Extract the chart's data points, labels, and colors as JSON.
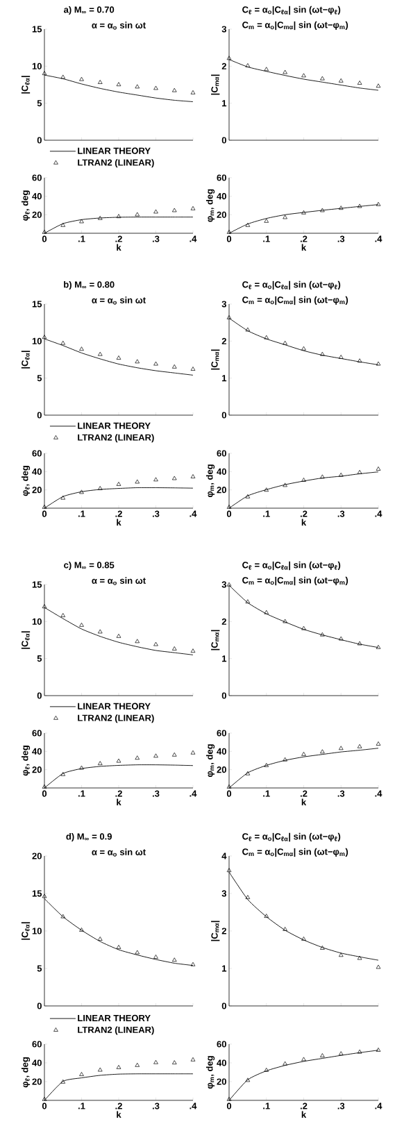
{
  "chart_data": [
    {
      "type": "line",
      "title": "a)  M$_{∞}$ = 0.70",
      "annotations": [
        "α = α$_{o}$ sin ωt"
      ],
      "ylabel": "|C$_{ℓα}$|",
      "xlim": [
        0,
        0.4
      ],
      "xticks": [
        0,
        0.1,
        0.2,
        0.3,
        0.4
      ],
      "ylim": [
        0,
        15
      ],
      "yticks": [
        0,
        5,
        10,
        15
      ],
      "tick_labels": "y",
      "legend": "bottom",
      "series": [
        {
          "name": "LINEAR THEORY",
          "color": "#000000",
          "x": [
            0,
            0.05,
            0.1,
            0.15,
            0.2,
            0.25,
            0.3,
            0.35,
            0.4
          ],
          "values": [
            8.8,
            8.3,
            7.6,
            7.0,
            6.5,
            6.1,
            5.7,
            5.4,
            5.2
          ]
        },
        {
          "name": "LTRAN2 (LINEAR)",
          "type": "scatter",
          "marker": "triangle",
          "color": "#000000",
          "x": [
            0,
            0.05,
            0.1,
            0.15,
            0.2,
            0.25,
            0.3,
            0.35,
            0.4
          ],
          "values": [
            9.0,
            8.5,
            8.2,
            7.8,
            7.5,
            7.2,
            7.0,
            6.7,
            6.4
          ]
        }
      ]
    },
    {
      "type": "line",
      "annotations": [
        "C$_{ℓ}$ = α$_{o}$|C$_{ℓα}$| sin (ωt−φ$_{ℓ}$)",
        "C$_{m}$ = α$_{o}$|C$_{mα}$| sin (ωt−φ$_{m}$)"
      ],
      "ylabel": "|C$_{mα}$|",
      "xlim": [
        0,
        0.4
      ],
      "xticks": [
        0,
        0.1,
        0.2,
        0.3,
        0.4
      ],
      "ylim": [
        0,
        3
      ],
      "yticks": [
        0,
        1,
        2,
        3
      ],
      "tick_labels": "y",
      "series": [
        {
          "color": "#000000",
          "x": [
            0,
            0.05,
            0.1,
            0.15,
            0.2,
            0.25,
            0.3,
            0.35,
            0.4
          ],
          "values": [
            2.18,
            1.98,
            1.86,
            1.75,
            1.65,
            1.57,
            1.49,
            1.41,
            1.35
          ]
        },
        {
          "type": "scatter",
          "marker": "triangle",
          "color": "#000000",
          "x": [
            0,
            0.05,
            0.1,
            0.15,
            0.2,
            0.25,
            0.3,
            0.35,
            0.4
          ],
          "values": [
            2.21,
            2.01,
            1.91,
            1.83,
            1.74,
            1.66,
            1.6,
            1.54,
            1.46
          ]
        }
      ]
    },
    {
      "type": "line",
      "xlabel": "k",
      "ylabel": "φ$_{ℓ}$, deg",
      "xlim": [
        0,
        0.4
      ],
      "xticks": [
        0,
        {
          "value": 0.1,
          "label": ".1"
        },
        {
          "value": 0.2,
          "label": ".2"
        },
        {
          "value": 0.3,
          "label": ".3"
        },
        {
          "value": 0.4,
          "label": ".4"
        }
      ],
      "ylim": [
        0,
        60
      ],
      "yticks": [
        20,
        40,
        60
      ],
      "series": [
        {
          "color": "#000000",
          "x": [
            0,
            0.05,
            0.1,
            0.15,
            0.2,
            0.25,
            0.3,
            0.35,
            0.4
          ],
          "values": [
            0,
            10.4,
            14.7,
            16.5,
            17.3,
            17.5,
            17.5,
            17.5,
            17.5
          ]
        },
        {
          "type": "scatter",
          "marker": "triangle",
          "color": "#000000",
          "x": [
            0,
            0.05,
            0.1,
            0.15,
            0.2,
            0.25,
            0.3,
            0.35,
            0.4
          ],
          "values": [
            1,
            8.5,
            12.5,
            16,
            18,
            20,
            23,
            24.5,
            26.5
          ]
        }
      ]
    },
    {
      "type": "line",
      "xlabel": "k",
      "ylabel": "φ$_{m}$, deg",
      "xlim": [
        0,
        0.4
      ],
      "xticks": [
        0,
        {
          "value": 0.1,
          "label": ".1"
        },
        {
          "value": 0.2,
          "label": ".2"
        },
        {
          "value": 0.3,
          "label": ".3"
        },
        {
          "value": 0.4,
          "label": ".4"
        }
      ],
      "ylim": [
        0,
        60
      ],
      "yticks": [
        20,
        40,
        60
      ],
      "series": [
        {
          "color": "#000000",
          "x": [
            0,
            0.05,
            0.1,
            0.15,
            0.2,
            0.25,
            0.3,
            0.35,
            0.4
          ],
          "values": [
            0,
            10,
            16,
            20,
            22.5,
            24.8,
            26.9,
            29,
            31
          ]
        },
        {
          "type": "scatter",
          "marker": "triangle",
          "color": "#000000",
          "x": [
            0,
            0.05,
            0.1,
            0.15,
            0.2,
            0.25,
            0.3,
            0.35,
            0.4
          ],
          "values": [
            1,
            8.5,
            13,
            17,
            22,
            24.5,
            27,
            29,
            31
          ]
        }
      ]
    },
    {
      "type": "line",
      "title": "b)  M$_{∞}$ = 0.80",
      "annotations": [
        "α = α$_{o}$ sin ωt"
      ],
      "ylabel": "|C$_{ℓα}$|",
      "xlim": [
        0,
        0.4
      ],
      "xticks": [
        0,
        0.1,
        0.2,
        0.3,
        0.4
      ],
      "ylim": [
        0,
        15
      ],
      "yticks": [
        0,
        5,
        10,
        15
      ],
      "tick_labels": "y",
      "legend": "bottom",
      "series": [
        {
          "name": "LINEAR THEORY",
          "color": "#000000",
          "x": [
            0,
            0.05,
            0.1,
            0.15,
            0.2,
            0.25,
            0.3,
            0.35,
            0.4
          ],
          "values": [
            10.3,
            9.4,
            8.4,
            7.6,
            6.9,
            6.4,
            6.0,
            5.7,
            5.4
          ]
        },
        {
          "name": "LTRAN2 (LINEAR)",
          "type": "scatter",
          "marker": "triangle",
          "color": "#000000",
          "x": [
            0,
            0.05,
            0.1,
            0.15,
            0.2,
            0.25,
            0.3,
            0.35,
            0.4
          ],
          "values": [
            10.5,
            9.7,
            8.9,
            8.2,
            7.7,
            7.2,
            6.9,
            6.5,
            6.2
          ]
        }
      ]
    },
    {
      "type": "line",
      "annotations": [
        "C$_{ℓ}$ = α$_{o}$|C$_{ℓα}$| sin (ωt−φ$_{ℓ}$)",
        "C$_{m}$ = α$_{o}$|C$_{mα}$| sin (ωt−φ$_{m}$)"
      ],
      "ylabel": "|C$_{mα}$|",
      "xlim": [
        0,
        0.4
      ],
      "xticks": [
        0,
        0.1,
        0.2,
        0.3,
        0.4
      ],
      "ylim": [
        0,
        3
      ],
      "yticks": [
        0,
        1,
        2,
        3
      ],
      "tick_labels": "y",
      "series": [
        {
          "color": "#000000",
          "x": [
            0,
            0.05,
            0.1,
            0.15,
            0.2,
            0.25,
            0.3,
            0.35,
            0.4
          ],
          "values": [
            2.62,
            2.28,
            2.06,
            1.9,
            1.74,
            1.62,
            1.53,
            1.44,
            1.36
          ]
        },
        {
          "type": "scatter",
          "marker": "triangle",
          "color": "#000000",
          "x": [
            0,
            0.05,
            0.1,
            0.15,
            0.2,
            0.25,
            0.3,
            0.35,
            0.4
          ],
          "values": [
            2.63,
            2.3,
            2.09,
            1.94,
            1.79,
            1.64,
            1.56,
            1.46,
            1.38
          ]
        }
      ]
    },
    {
      "type": "line",
      "xlabel": "k",
      "ylabel": "φ$_{ℓ}$, deg",
      "xlim": [
        0,
        0.4
      ],
      "xticks": [
        0,
        {
          "value": 0.1,
          "label": ".1"
        },
        {
          "value": 0.2,
          "label": ".2"
        },
        {
          "value": 0.3,
          "label": ".3"
        },
        {
          "value": 0.4,
          "label": ".4"
        }
      ],
      "ylim": [
        0,
        60
      ],
      "yticks": [
        20,
        40,
        60
      ],
      "series": [
        {
          "color": "#000000",
          "x": [
            0,
            0.05,
            0.1,
            0.15,
            0.2,
            0.25,
            0.3,
            0.35,
            0.4
          ],
          "values": [
            0,
            12.7,
            18,
            20.5,
            21.6,
            22.4,
            22.4,
            22.2,
            21.9
          ]
        },
        {
          "type": "scatter",
          "marker": "triangle",
          "color": "#000000",
          "x": [
            0,
            0.05,
            0.1,
            0.15,
            0.2,
            0.25,
            0.3,
            0.35,
            0.4
          ],
          "values": [
            1,
            11,
            17.3,
            21.4,
            26,
            28.6,
            31,
            32.4,
            34.3
          ]
        }
      ]
    },
    {
      "type": "line",
      "xlabel": "k",
      "ylabel": "φ$_{m}$, deg",
      "xlim": [
        0,
        0.4
      ],
      "xticks": [
        0,
        {
          "value": 0.1,
          "label": ".1"
        },
        {
          "value": 0.2,
          "label": ".2"
        },
        {
          "value": 0.3,
          "label": ".3"
        },
        {
          "value": 0.4,
          "label": ".4"
        }
      ],
      "ylim": [
        0,
        60
      ],
      "yticks": [
        20,
        40,
        60
      ],
      "series": [
        {
          "color": "#000000",
          "x": [
            0,
            0.05,
            0.1,
            0.15,
            0.2,
            0.25,
            0.3,
            0.35,
            0.4
          ],
          "values": [
            0,
            13.5,
            20.3,
            25.7,
            29.7,
            33,
            35,
            37.6,
            39.7
          ]
        },
        {
          "type": "scatter",
          "marker": "triangle",
          "color": "#000000",
          "x": [
            0,
            0.05,
            0.1,
            0.15,
            0.2,
            0.25,
            0.3,
            0.35,
            0.4
          ],
          "values": [
            1,
            12.4,
            19.7,
            24.9,
            30.5,
            34,
            36,
            39,
            42.7
          ]
        }
      ]
    },
    {
      "type": "line",
      "title": "c)  M$_{∞}$ = 0.85",
      "annotations": [
        "α = α$_{o}$ sin ωt"
      ],
      "ylabel": "|C$_{ℓα}$|",
      "xlim": [
        0,
        0.4
      ],
      "xticks": [
        0,
        0.1,
        0.2,
        0.3,
        0.4
      ],
      "ylim": [
        0,
        15
      ],
      "yticks": [
        0,
        5,
        10,
        15
      ],
      "tick_labels": "y",
      "legend": "bottom",
      "series": [
        {
          "name": "LINEAR THEORY",
          "color": "#000000",
          "x": [
            0,
            0.05,
            0.1,
            0.15,
            0.2,
            0.25,
            0.3,
            0.35,
            0.4
          ],
          "values": [
            11.9,
            10.4,
            9.0,
            8.0,
            7.2,
            6.6,
            6.1,
            5.8,
            5.5
          ]
        },
        {
          "name": "LTRAN2 (LINEAR)",
          "type": "scatter",
          "marker": "triangle",
          "color": "#000000",
          "x": [
            0,
            0.05,
            0.1,
            0.15,
            0.2,
            0.25,
            0.3,
            0.35,
            0.4
          ],
          "values": [
            12.0,
            10.8,
            9.5,
            8.6,
            8.0,
            7.3,
            6.9,
            6.3,
            6.0
          ]
        }
      ]
    },
    {
      "type": "line",
      "annotations": [
        "C$_{ℓ}$ = α$_{o}$|C$_{ℓα}$| sin (ωt−φ$_{ℓ}$)",
        "C$_{m}$ = α$_{o}$|C$_{mα}$| sin (ωt−φ$_{m}$)"
      ],
      "ylabel": "|C$_{mα}$|",
      "xlim": [
        0,
        0.4
      ],
      "xticks": [
        0,
        0.1,
        0.2,
        0.3,
        0.4
      ],
      "ylim": [
        0,
        3
      ],
      "yticks": [
        0,
        1,
        2,
        3
      ],
      "tick_labels": "y",
      "series": [
        {
          "color": "#000000",
          "x": [
            0,
            0.05,
            0.1,
            0.15,
            0.2,
            0.25,
            0.3,
            0.35,
            0.4
          ],
          "values": [
            2.98,
            2.51,
            2.21,
            1.99,
            1.79,
            1.64,
            1.51,
            1.39,
            1.3
          ]
        },
        {
          "type": "scatter",
          "marker": "triangle",
          "color": "#000000",
          "x": [
            0,
            0.05,
            0.1,
            0.15,
            0.2,
            0.25,
            0.3,
            0.35,
            0.4
          ],
          "values": [
            2.99,
            2.53,
            2.24,
            2.0,
            1.81,
            1.64,
            1.53,
            1.4,
            1.3
          ]
        }
      ]
    },
    {
      "type": "line",
      "xlabel": "k",
      "ylabel": "φ$_{ℓ}$, deg",
      "xlim": [
        0,
        0.4
      ],
      "xticks": [
        0,
        {
          "value": 0.1,
          "label": ".1"
        },
        {
          "value": 0.2,
          "label": ".2"
        },
        {
          "value": 0.3,
          "label": ".3"
        },
        {
          "value": 0.4,
          "label": ".4"
        }
      ],
      "ylim": [
        0,
        60
      ],
      "yticks": [
        20,
        40,
        60
      ],
      "series": [
        {
          "color": "#000000",
          "x": [
            0,
            0.05,
            0.1,
            0.15,
            0.2,
            0.25,
            0.3,
            0.35,
            0.4
          ],
          "values": [
            0,
            15.8,
            21.2,
            23.6,
            24.7,
            25.3,
            25.3,
            25,
            24.5
          ]
        },
        {
          "type": "scatter",
          "marker": "triangle",
          "color": "#000000",
          "x": [
            0,
            0.05,
            0.1,
            0.15,
            0.2,
            0.25,
            0.3,
            0.35,
            0.4
          ],
          "values": [
            1,
            14.7,
            21.7,
            26.6,
            29.3,
            32.6,
            34.8,
            36,
            38.3
          ]
        }
      ]
    },
    {
      "type": "line",
      "xlabel": "k",
      "ylabel": "φ$_{m}$, deg",
      "xlim": [
        0,
        0.4
      ],
      "xticks": [
        0,
        {
          "value": 0.1,
          "label": ".1"
        },
        {
          "value": 0.2,
          "label": ".2"
        },
        {
          "value": 0.3,
          "label": ".3"
        },
        {
          "value": 0.4,
          "label": ".4"
        }
      ],
      "ylim": [
        0,
        60
      ],
      "yticks": [
        20,
        40,
        60
      ],
      "series": [
        {
          "color": "#000000",
          "x": [
            0,
            0.05,
            0.1,
            0.15,
            0.2,
            0.25,
            0.3,
            0.35,
            0.4
          ],
          "values": [
            0,
            16.6,
            24.7,
            30.2,
            34,
            36.7,
            39.4,
            41.3,
            43.5
          ]
        },
        {
          "type": "scatter",
          "marker": "triangle",
          "color": "#000000",
          "x": [
            0,
            0.05,
            0.1,
            0.15,
            0.2,
            0.25,
            0.3,
            0.35,
            0.4
          ],
          "values": [
            1,
            15.5,
            24.5,
            30.7,
            36.7,
            39.4,
            43.2,
            45.1,
            48
          ]
        }
      ]
    },
    {
      "type": "line",
      "title": "d)  M$_{∞}$ = 0.9",
      "annotations": [
        "α = α$_{o}$ sin ωt"
      ],
      "ylabel": "|C$_{ℓα}$|",
      "xlim": [
        0,
        0.4
      ],
      "xticks": [
        0,
        0.1,
        0.2,
        0.3,
        0.4
      ],
      "ylim": [
        0,
        20
      ],
      "yticks": [
        0,
        5,
        10,
        15,
        20
      ],
      "tick_labels": "y",
      "legend": "bottom",
      "series": [
        {
          "name": "LINEAR THEORY",
          "color": "#000000",
          "x": [
            0,
            0.05,
            0.1,
            0.15,
            0.2,
            0.25,
            0.3,
            0.35,
            0.4
          ],
          "values": [
            14.3,
            11.9,
            10.1,
            8.6,
            7.5,
            6.8,
            6.2,
            5.7,
            5.4
          ]
        },
        {
          "name": "LTRAN2 (LINEAR)",
          "type": "scatter",
          "marker": "triangle",
          "color": "#000000",
          "x": [
            0,
            0.05,
            0.1,
            0.15,
            0.2,
            0.25,
            0.3,
            0.35,
            0.4
          ],
          "values": [
            14.6,
            11.9,
            10.1,
            8.9,
            7.8,
            7.1,
            6.5,
            6.1,
            5.5
          ]
        }
      ]
    },
    {
      "type": "line",
      "annotations": [
        "C$_{ℓ}$ = α$_{o}$|C$_{ℓα}$| sin (ωt−φ$_{ℓ}$)",
        "C$_{m}$ = α$_{o}$|C$_{mα}$| sin (ωt−φ$_{m}$)"
      ],
      "ylabel": "|C$_{mα}$|",
      "xlim": [
        0,
        0.4
      ],
      "xticks": [
        0,
        0.1,
        0.2,
        0.3,
        0.4
      ],
      "ylim": [
        0,
        4
      ],
      "yticks": [
        0,
        1,
        2,
        3,
        4
      ],
      "tick_labels": "y",
      "series": [
        {
          "color": "#000000",
          "x": [
            0,
            0.05,
            0.1,
            0.15,
            0.2,
            0.25,
            0.3,
            0.35,
            0.4
          ],
          "values": [
            3.57,
            2.84,
            2.38,
            2.02,
            1.76,
            1.56,
            1.41,
            1.31,
            1.22
          ]
        },
        {
          "type": "scatter",
          "marker": "triangle",
          "color": "#000000",
          "x": [
            0,
            0.05,
            0.1,
            0.15,
            0.2,
            0.25,
            0.3,
            0.35,
            0.4
          ],
          "values": [
            3.61,
            2.89,
            2.39,
            2.04,
            1.78,
            1.54,
            1.35,
            1.27,
            1.03
          ]
        }
      ]
    },
    {
      "type": "line",
      "xlabel": "k",
      "ylabel": "φ$_{ℓ}$, deg",
      "xlim": [
        0,
        0.4
      ],
      "xticks": [
        0,
        {
          "value": 0.1,
          "label": ".1"
        },
        {
          "value": 0.2,
          "label": ".2"
        },
        {
          "value": 0.3,
          "label": ".3"
        },
        {
          "value": 0.4,
          "label": ".4"
        }
      ],
      "ylim": [
        0,
        60
      ],
      "yticks": [
        20,
        40,
        60
      ],
      "series": [
        {
          "color": "#000000",
          "x": [
            0,
            0.05,
            0.1,
            0.15,
            0.2,
            0.25,
            0.3,
            0.35,
            0.4
          ],
          "values": [
            0,
            20.3,
            24,
            26.7,
            28,
            28.3,
            28.3,
            28.3,
            28.3
          ]
        },
        {
          "type": "scatter",
          "marker": "triangle",
          "color": "#000000",
          "x": [
            0,
            0.05,
            0.1,
            0.15,
            0.2,
            0.25,
            0.3,
            0.35,
            0.4
          ],
          "values": [
            1,
            19.5,
            27.5,
            32.3,
            35,
            37.3,
            40.3,
            40,
            43.2
          ]
        }
      ]
    },
    {
      "type": "line",
      "xlabel": "k",
      "ylabel": "φ$_{m}$, deg",
      "xlim": [
        0,
        0.4
      ],
      "xticks": [
        0,
        {
          "value": 0.1,
          "label": ".1"
        },
        {
          "value": 0.2,
          "label": ".2"
        },
        {
          "value": 0.3,
          "label": ".3"
        },
        {
          "value": 0.4,
          "label": ".4"
        }
      ],
      "ylim": [
        0,
        60
      ],
      "yticks": [
        20,
        40,
        60
      ],
      "series": [
        {
          "color": "#000000",
          "x": [
            0,
            0.05,
            0.1,
            0.15,
            0.2,
            0.25,
            0.3,
            0.35,
            0.4
          ],
          "values": [
            0,
            22,
            31.5,
            37.3,
            41.6,
            44.8,
            48,
            50.9,
            53.5
          ]
        },
        {
          "type": "scatter",
          "marker": "triangle",
          "color": "#000000",
          "x": [
            0,
            0.05,
            0.1,
            0.15,
            0.2,
            0.25,
            0.3,
            0.35,
            0.4
          ],
          "values": [
            1,
            21.3,
            32,
            38.9,
            43.5,
            47.5,
            49.6,
            51.5,
            53.5
          ]
        }
      ]
    }
  ]
}
